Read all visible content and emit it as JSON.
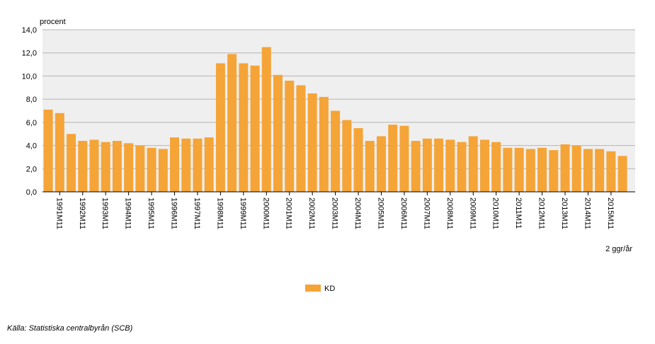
{
  "chart_data": {
    "type": "bar",
    "y_label": "procent",
    "frequency_note": "2 ggr/år",
    "source": "Källa: Statistiska centralbyrån (SCB)",
    "categories": [
      null,
      "1991M11",
      null,
      "1992M11",
      null,
      "1993M11",
      null,
      "1994M11",
      null,
      "1995M11",
      null,
      "1996M11",
      null,
      "1997M11",
      null,
      "1998M11",
      null,
      "1999M11",
      null,
      "2000M11",
      null,
      "2001M11",
      null,
      "2002M11",
      null,
      "2003M11",
      null,
      "2004M11",
      null,
      "2005M11",
      null,
      "2006M11",
      null,
      "2007M11",
      null,
      "2008M11",
      null,
      "2009M11",
      null,
      "2010M11",
      null,
      "2011M11",
      null,
      "2012M11",
      null,
      "2013M11",
      null,
      "2014M11",
      null,
      "2015M11",
      null
    ],
    "series": [
      {
        "name": "KD",
        "color": "#f5a438",
        "values": [
          7.1,
          6.8,
          5.0,
          4.4,
          4.5,
          4.3,
          4.4,
          4.2,
          4.0,
          3.8,
          3.7,
          4.7,
          4.6,
          4.6,
          4.7,
          11.1,
          11.9,
          11.1,
          10.9,
          12.5,
          10.1,
          9.6,
          9.2,
          8.5,
          8.2,
          7.0,
          6.2,
          5.5,
          4.4,
          4.8,
          5.8,
          5.7,
          4.4,
          4.6,
          4.6,
          4.5,
          4.3,
          4.8,
          4.5,
          4.3,
          3.8,
          3.8,
          3.7,
          3.8,
          3.6,
          4.1,
          4.0,
          3.7,
          3.7,
          3.5,
          3.1
        ]
      }
    ],
    "ylim": [
      0,
      14
    ],
    "yticks": [
      {
        "value": 0,
        "label": "0,0"
      },
      {
        "value": 2,
        "label": "2,0"
      },
      {
        "value": 4,
        "label": "4,0"
      },
      {
        "value": 6,
        "label": "6,0"
      },
      {
        "value": 8,
        "label": "8,0"
      },
      {
        "value": 10,
        "label": "10,0"
      },
      {
        "value": 12,
        "label": "12,0"
      },
      {
        "value": 14,
        "label": "14,0"
      }
    ],
    "grid": true
  }
}
